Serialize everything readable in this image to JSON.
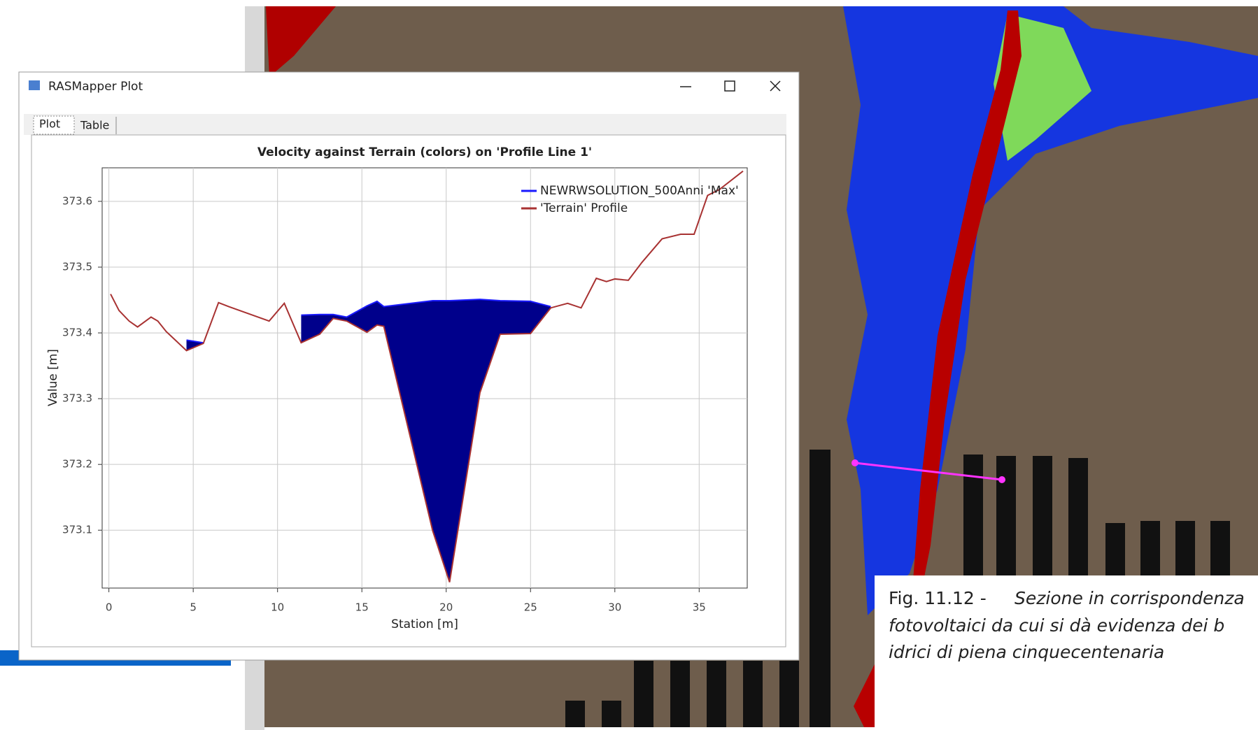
{
  "window": {
    "title": "RASMapper Plot",
    "tabs": [
      "Plot",
      "Table"
    ]
  },
  "chart_data": {
    "type": "line",
    "title": "Velocity against Terrain (colors) on 'Profile Line 1'",
    "x_label": "Station [m]",
    "y_label": "Value [m]",
    "x": [
      0.1,
      0.6,
      1.2,
      1.7,
      2.5,
      2.9,
      3.4,
      3.9,
      4.6,
      5.6,
      6.5,
      7.1,
      9.5,
      10.4,
      11.4,
      12.5,
      13.3,
      14.1,
      15.3,
      15.9,
      16.3,
      19.2,
      20.2,
      22.0,
      23.2,
      25.0,
      26.2,
      27.2,
      28.0,
      28.9,
      29.5,
      30.0,
      30.8,
      31.6,
      32.8,
      33.9,
      34.7,
      35.5,
      36.2,
      37.6
    ],
    "series": [
      {
        "name": "NEWRWSOLUTION_500Anni 'Max'",
        "color": "#1a1aff",
        "fill": "#00008b",
        "values": [
          null,
          null,
          null,
          null,
          null,
          null,
          null,
          null,
          373.389,
          373.385,
          null,
          null,
          null,
          null,
          373.427,
          373.428,
          373.428,
          373.424,
          373.441,
          373.448,
          373.44,
          373.449,
          373.449,
          373.451,
          373.449,
          373.448,
          373.44,
          null,
          null,
          null,
          null,
          null,
          null,
          null,
          null,
          null,
          null,
          null,
          null,
          null
        ]
      },
      {
        "name": "'Terrain' Profile",
        "color": "#a83232",
        "values": [
          373.459,
          373.434,
          373.418,
          373.409,
          373.424,
          373.418,
          373.402,
          373.39,
          373.373,
          373.384,
          373.446,
          373.44,
          373.418,
          373.445,
          373.385,
          373.398,
          373.422,
          373.418,
          373.401,
          373.412,
          373.41,
          373.099,
          373.021,
          373.309,
          373.398,
          373.399,
          373.438,
          373.445,
          373.438,
          373.483,
          373.478,
          373.482,
          373.48,
          373.507,
          373.543,
          373.55,
          373.55,
          373.609,
          373.618,
          373.646
        ]
      }
    ],
    "xlim": [
      -0.4,
      37.85
    ],
    "xticks": [
      0,
      5,
      10,
      15,
      20,
      25,
      30,
      35
    ],
    "ylim": [
      373.012,
      373.651
    ],
    "yticks": [
      373.1,
      373.2,
      373.3,
      373.4,
      373.5,
      373.6
    ],
    "grid": true,
    "legend": "upper right"
  },
  "caption": {
    "label": "Fig. 11.12 -",
    "lines": [
      "Sezione in corrispondenza",
      "fotovoltaici da cui si dà evidenza dei b",
      "idrici di piena cinquecentenaria"
    ]
  }
}
